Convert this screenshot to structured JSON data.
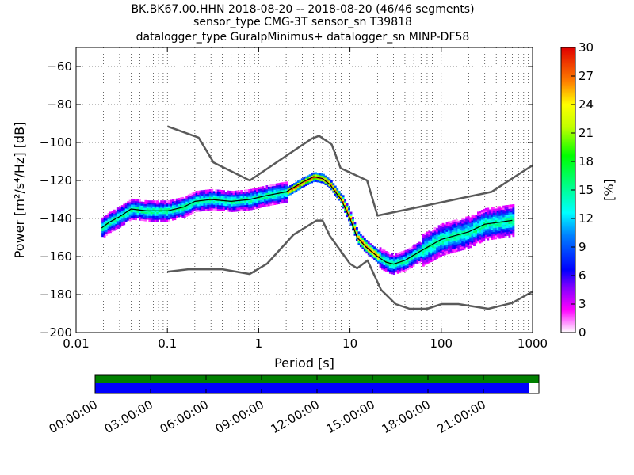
{
  "title_lines": [
    "BK.BK67.00.HHN   2018-08-20 -- 2018-08-20  (46/46 segments)",
    "sensor_type CMG-3T sensor_sn T39818",
    "datalogger_type GuralpMinimus+ datalogger_sn MINP-DF58"
  ],
  "chart_data": {
    "type": "heatmap",
    "title": "BK.BK67.00.HHN   2018-08-20 -- 2018-08-20  (46/46 segments)",
    "xlabel": "Period [s]",
    "ylabel": "Power [m²/s⁴/Hz] [dB]",
    "xscale": "log",
    "xlim": [
      0.01,
      1000
    ],
    "ylim": [
      -200,
      -50
    ],
    "x_tick_labels": [
      "0.01",
      "0.1",
      "1",
      "10",
      "100",
      "1000"
    ],
    "x_tick_values": [
      0.01,
      0.1,
      1,
      10,
      100,
      1000
    ],
    "y_tick_labels": [
      "−200",
      "−180",
      "−160",
      "−140",
      "−120",
      "−100",
      "−80",
      "−60"
    ],
    "y_tick_values": [
      -200,
      -180,
      -160,
      -140,
      -120,
      -100,
      -80,
      -60
    ],
    "grid": true,
    "colorbar": {
      "label": "[%]",
      "min": 0,
      "max": 30,
      "tick_labels": [
        "0",
        "3",
        "6",
        "9",
        "12",
        "15",
        "18",
        "21",
        "24",
        "27",
        "30"
      ],
      "tick_values": [
        0,
        3,
        6,
        9,
        12,
        15,
        18,
        21,
        24,
        27,
        30
      ]
    },
    "nhnm": {
      "x": [
        0.1,
        0.22,
        0.32,
        0.8,
        3.8,
        4.6,
        6.3,
        7.9,
        15.4,
        20,
        354.8,
        1000
      ],
      "y": [
        -91.5,
        -97.4,
        -110.5,
        -120,
        -98,
        -96.5,
        -101,
        -113.5,
        -120,
        -138.5,
        -126,
        -112
      ]
    },
    "nlnm": {
      "x": [
        0.1,
        0.17,
        0.4,
        0.8,
        1.24,
        2.4,
        4.3,
        5,
        6,
        10,
        12,
        15.6,
        21.9,
        31.6,
        45,
        70,
        101,
        154,
        328,
        600,
        1000
      ],
      "y": [
        -168,
        -166.7,
        -166.7,
        -169.2,
        -163.7,
        -148.6,
        -141.1,
        -141.1,
        -149,
        -163.8,
        -166.2,
        -162.1,
        -177.5,
        -185,
        -187.5,
        -187.5,
        -185,
        -185,
        -187.5,
        -184.4,
        -178.4
      ]
    },
    "mode_curve": {
      "x": [
        0.019,
        0.023,
        0.03,
        0.04,
        0.06,
        0.1,
        0.15,
        0.2,
        0.3,
        0.5,
        0.8,
        1.2,
        2,
        3,
        4,
        5,
        6,
        8,
        10,
        12,
        15,
        20,
        25,
        30,
        40,
        60,
        100,
        200,
        300,
        600
      ],
      "y": [
        -145,
        -142,
        -139,
        -135,
        -136,
        -136,
        -134,
        -131,
        -130,
        -131,
        -130,
        -128,
        -126,
        -121,
        -118,
        -119,
        -122,
        -130,
        -140,
        -150,
        -155,
        -160,
        -163,
        -164,
        -162,
        -157,
        -151,
        -147,
        -143,
        -141
      ]
    },
    "coverage": {
      "time_tick_labels": [
        "00:00:00",
        "03:00:00",
        "06:00:00",
        "09:00:00",
        "12:00:00",
        "15:00:00",
        "18:00:00",
        "21:00:00"
      ],
      "data_fraction": 0.977,
      "used_fraction": 1.0
    }
  },
  "colors": {
    "nlnm_nhnm": "#5a5a5a",
    "mode_curve": "#000000",
    "coverage_data": "#0000ff",
    "coverage_used": "#008000"
  }
}
